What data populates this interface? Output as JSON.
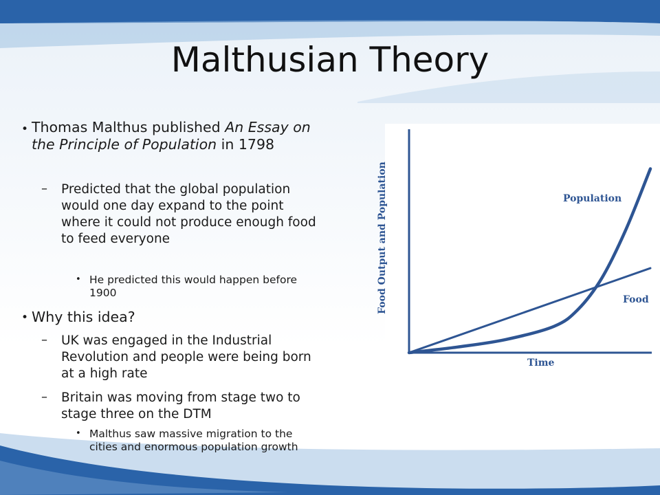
{
  "slide": {
    "title": "Malthusian Theory",
    "accent_color": "#2e5593",
    "bullets": [
      {
        "text_before": "Thomas Malthus published ",
        "text_italic": "An Essay on the Principle of Population",
        "text_after": " in 1798",
        "sub": [
          {
            "text": "Predicted that the global population would one day expand to the point where it could not produce enough food to feed everyone",
            "sub": [
              "He predicted this would happen before 1900"
            ]
          }
        ]
      },
      {
        "text": "Why this idea?",
        "sub": [
          {
            "text": "UK was engaged in the Industrial Revolution and people were being born at a high rate"
          },
          {
            "text": "Britain was moving from stage two to stage three on the DTM",
            "sub": [
              "Malthus saw massive migration to the cities and enormous population growth"
            ]
          }
        ]
      }
    ]
  },
  "chart_data": {
    "type": "line",
    "xlabel": "Time",
    "ylabel": "Food Output and Population",
    "series": [
      {
        "name": "Population",
        "trend": "exponential",
        "x": [
          0,
          2,
          4,
          6,
          7,
          8,
          9,
          10
        ],
        "values": [
          0,
          0.3,
          0.7,
          1.4,
          2.3,
          4.0,
          6.6,
          9.8
        ]
      },
      {
        "name": "Food",
        "trend": "linear",
        "x": [
          0,
          10
        ],
        "values": [
          0,
          4.5
        ]
      }
    ],
    "xlim": [
      0,
      10
    ],
    "ylim": [
      0,
      10
    ],
    "grid": false,
    "legend": "inline labels"
  }
}
